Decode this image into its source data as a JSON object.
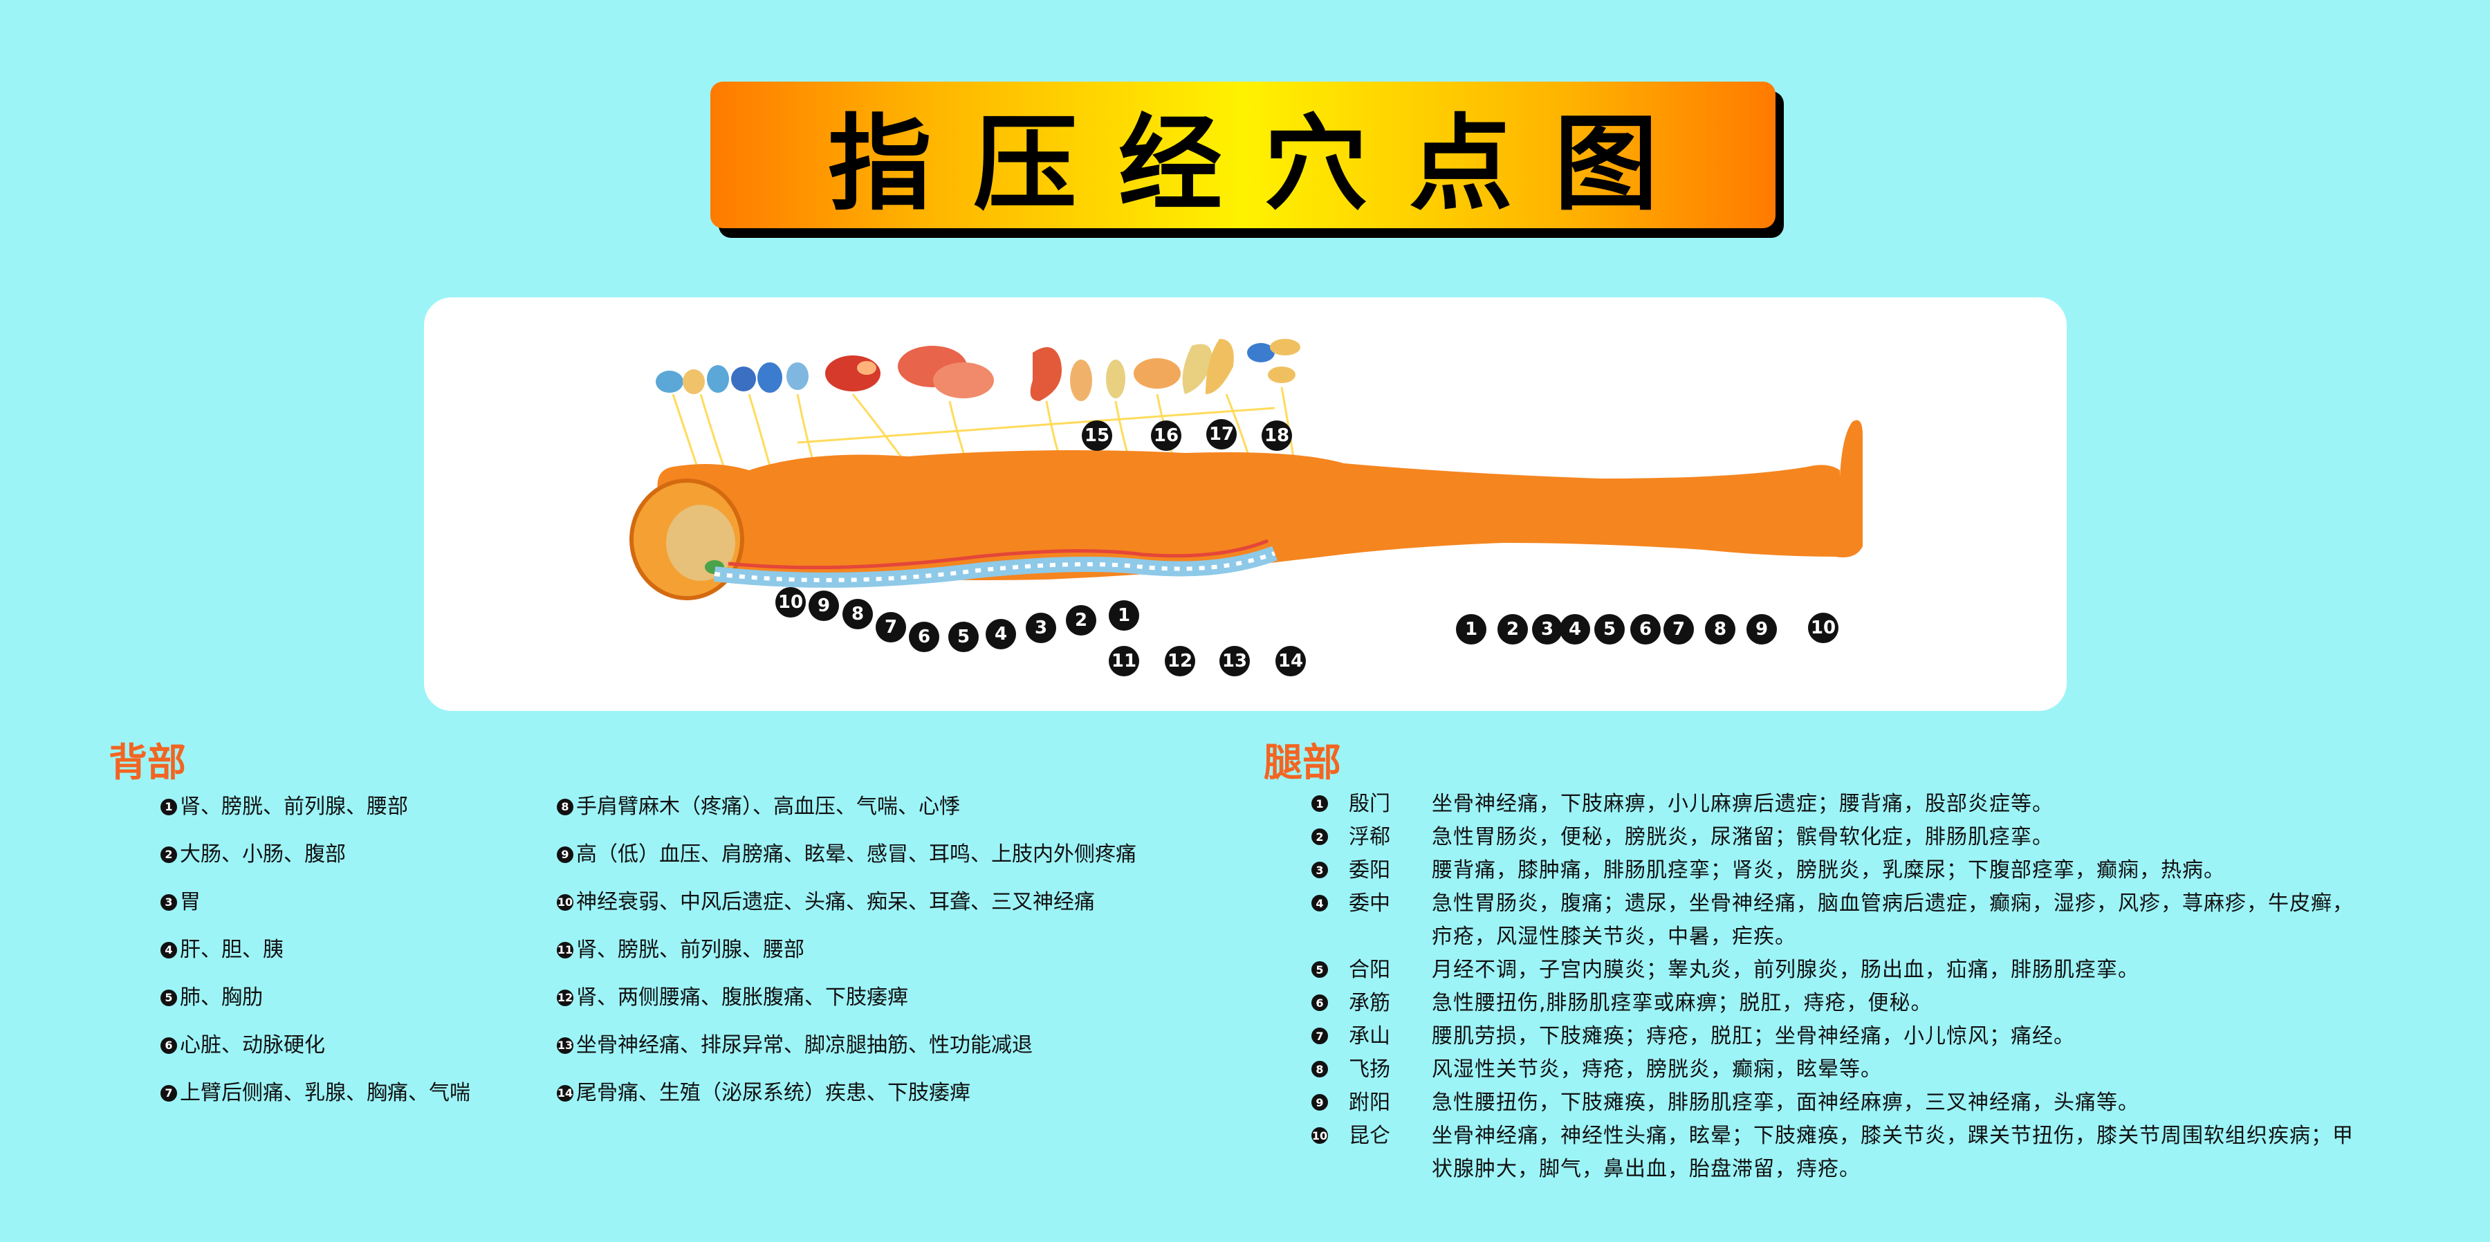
{
  "title": "指压经穴点图",
  "diagram": {
    "upper_markers": [
      "15",
      "16",
      "17",
      "18"
    ],
    "spine_markers": [
      "10",
      "9",
      "8",
      "7",
      "6",
      "5",
      "4",
      "3",
      "2",
      "1"
    ],
    "lower_markers": [
      "11",
      "12",
      "13",
      "14"
    ],
    "leg_markers": [
      "1",
      "2",
      "3",
      "4",
      "5",
      "6",
      "7",
      "8",
      "9",
      "10"
    ]
  },
  "back_section": {
    "title": "背部",
    "items": [
      {
        "num": "1",
        "text": "肾、膀胱、前列腺、腰部"
      },
      {
        "num": "2",
        "text": "大肠、小肠、腹部"
      },
      {
        "num": "3",
        "text": "胃"
      },
      {
        "num": "4",
        "text": "肝、胆、胰"
      },
      {
        "num": "5",
        "text": "肺、胸肋"
      },
      {
        "num": "6",
        "text": "心脏、动脉硬化"
      },
      {
        "num": "7",
        "text": "上臂后侧痛、乳腺、胸痛、气喘"
      },
      {
        "num": "8",
        "text": "手肩臂麻木（疼痛）、高血压、气喘、心悸"
      },
      {
        "num": "9",
        "text": "高（低）血压、肩膀痛、眩晕、感冒、耳鸣、上肢内外侧疼痛"
      },
      {
        "num": "10",
        "text": "神经衰弱、中风后遗症、头痛、痴呆、耳聋、三叉神经痛"
      },
      {
        "num": "11",
        "text": "肾、膀胱、前列腺、腰部"
      },
      {
        "num": "12",
        "text": "肾、两侧腰痛、腹胀腹痛、下肢痿痺"
      },
      {
        "num": "13",
        "text": "坐骨神经痛、排尿异常、脚凉腿抽筋、性功能减退"
      },
      {
        "num": "14",
        "text": "尾骨痛、生殖（泌尿系统）疾患、下肢痿痺"
      }
    ]
  },
  "leg_section": {
    "title": "腿部",
    "items": [
      {
        "num": "1",
        "point": "殷门",
        "desc": "坐骨神经痛，下肢麻痹，小儿麻痹后遗症；腰背痛，股部炎症等。"
      },
      {
        "num": "2",
        "point": "浮郗",
        "desc": "急性胃肠炎，便秘，膀胱炎，尿潴留；髌骨软化症，腓肠肌痉挛。"
      },
      {
        "num": "3",
        "point": "委阳",
        "desc": "腰背痛，膝肿痛，腓肠肌痉挛；肾炎，膀胱炎，乳糜尿；下腹部痉挛，癫痫，热病。"
      },
      {
        "num": "4",
        "point": "委中",
        "desc": "急性胃肠炎，腹痛；遗尿，坐骨神经痛，脑血管病后遗症，癫痫，湿疹，风疹，荨麻疹，牛皮癣，疖疮，风湿性膝关节炎，中暑，疟疾。"
      },
      {
        "num": "5",
        "point": "合阳",
        "desc": "月经不调，子宫内膜炎；睾丸炎，前列腺炎，肠出血，疝痛，腓肠肌痉挛。"
      },
      {
        "num": "6",
        "point": "承筋",
        "desc": "急性腰扭伤,腓肠肌痉挛或麻痹；脱肛，痔疮，便秘。"
      },
      {
        "num": "7",
        "point": "承山",
        "desc": "腰肌劳损，下肢瘫痪；痔疮，脱肛；坐骨神经痛，小儿惊风；痛经。"
      },
      {
        "num": "8",
        "point": "飞扬",
        "desc": "风湿性关节炎，痔疮，膀胱炎，癫痫，眩晕等。"
      },
      {
        "num": "9",
        "point": "跗阳",
        "desc": "急性腰扭伤，下肢瘫痪，腓肠肌痉挛，面神经麻痹，三叉神经痛，头痛等。"
      },
      {
        "num": "10",
        "point": "昆仑",
        "desc": "坐骨神经痛，神经性头痛，眩晕；下肢瘫痪，膝关节炎，踝关节扭伤，膝关节周围软组织疾病；甲状腺肿大，脚气，鼻出血，胎盘滞留，痔疮。"
      }
    ]
  },
  "colors": {
    "background": "#9df4f7",
    "body": "#f5851f",
    "accent_title": "#f26522",
    "nerve": "#ffd84a"
  }
}
